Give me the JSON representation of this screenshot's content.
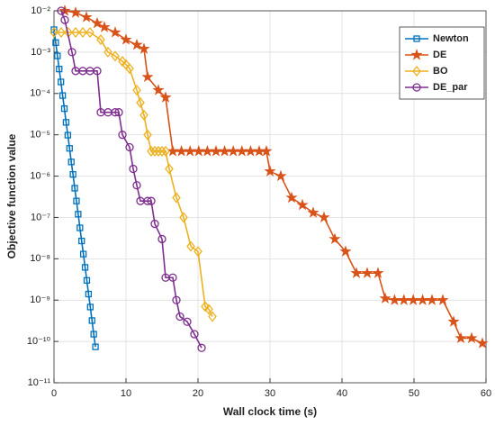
{
  "chart_data": {
    "type": "line",
    "x_label": "Wall clock time (s)",
    "y_label": "Objective function value",
    "xlim": [
      0,
      60
    ],
    "xticks": [
      0,
      10,
      20,
      30,
      40,
      50,
      60
    ],
    "ylim": [
      1e-11,
      0.01
    ],
    "ylog": true,
    "yticks": [
      {
        "value": 1e-11,
        "label": "10⁻¹¹"
      },
      {
        "value": 1e-10,
        "label": "10⁻¹⁰"
      },
      {
        "value": 1e-09,
        "label": "10⁻⁹"
      },
      {
        "value": 1e-08,
        "label": "10⁻⁸"
      },
      {
        "value": 1e-07,
        "label": "10⁻⁷"
      },
      {
        "value": 1e-06,
        "label": "10⁻⁶"
      },
      {
        "value": 1e-05,
        "label": "10⁻⁵"
      },
      {
        "value": 0.0001,
        "label": "10⁻⁴"
      },
      {
        "value": 0.001,
        "label": "10⁻³"
      },
      {
        "value": 0.01,
        "label": "10⁻²"
      }
    ],
    "grid": true,
    "legend": "upper right",
    "series": [
      {
        "name": "Newton",
        "color": "#0072BD",
        "marker": "square",
        "x": [
          0,
          0.24,
          0.48,
          0.72,
          0.96,
          1.2,
          1.44,
          1.68,
          1.92,
          2.16,
          2.4,
          2.64,
          2.88,
          3.12,
          3.36,
          3.6,
          3.84,
          4.08,
          4.32,
          4.56,
          4.8,
          5.04,
          5.28,
          5.52,
          5.76
        ],
        "values": [
          0.0035,
          0.0017,
          0.00081,
          0.00039,
          0.00019,
          8.9e-05,
          4.3e-05,
          2e-05,
          9.8e-06,
          4.7e-06,
          2.2e-06,
          1.1e-06,
          5.1e-07,
          2.5e-07,
          1.2e-07,
          5.6e-08,
          2.7e-08,
          1.3e-08,
          6.2e-09,
          3e-09,
          1.4e-09,
          6.8e-10,
          3.2e-10,
          1.5e-10,
          7.4e-11
        ]
      },
      {
        "name": "DE",
        "color": "#D95319",
        "marker": "star",
        "x": [
          1.5,
          3,
          4.5,
          6,
          7,
          8.5,
          10,
          11.5,
          12.5,
          13,
          14.5,
          15.5,
          16.5,
          17.7,
          18.9,
          20.1,
          21.3,
          22.5,
          23.7,
          24.9,
          26.1,
          27.3,
          28.5,
          29.5,
          30,
          31.5,
          33,
          34.5,
          36,
          37.5,
          39,
          40.5,
          42,
          43.5,
          45,
          46,
          47.3,
          48.6,
          49.9,
          51.2,
          52.5,
          54,
          55.5,
          56.5,
          58,
          59.5
        ],
        "values": [
          0.01,
          0.009,
          0.007,
          0.005,
          0.004,
          0.003,
          0.002,
          0.0015,
          0.0012,
          0.00025,
          0.00012,
          8e-05,
          4e-06,
          4e-06,
          4e-06,
          4e-06,
          4e-06,
          4e-06,
          4e-06,
          4e-06,
          4e-06,
          4e-06,
          4e-06,
          4e-06,
          1.3e-06,
          1e-06,
          3e-07,
          2e-07,
          1.3e-07,
          1e-07,
          3e-08,
          1.5e-08,
          4.5e-09,
          4.5e-09,
          4.5e-09,
          1.1e-09,
          1e-09,
          1e-09,
          1e-09,
          1e-09,
          1e-09,
          1e-09,
          3e-10,
          1.2e-10,
          1.2e-10,
          9e-11
        ]
      },
      {
        "name": "BO",
        "color": "#EDB120",
        "marker": "diamond",
        "x": [
          0,
          1,
          2,
          3,
          4,
          5,
          6.5,
          7.5,
          8.5,
          9.5,
          10,
          10.5,
          11.5,
          12,
          12.5,
          13,
          13.5,
          14,
          14.5,
          15,
          15.5,
          16,
          17,
          18,
          19,
          20,
          21,
          21.5,
          22
        ],
        "values": [
          0.003,
          0.003,
          0.003,
          0.003,
          0.003,
          0.003,
          0.002,
          0.001,
          0.0008,
          0.0006,
          0.0005,
          0.0004,
          0.00012,
          6e-05,
          3e-05,
          1e-05,
          4e-06,
          4e-06,
          4e-06,
          4e-06,
          4e-06,
          1.5e-06,
          3e-07,
          1e-07,
          2e-08,
          1.5e-08,
          7e-10,
          6e-10,
          4e-10
        ]
      },
      {
        "name": "DE_par",
        "color": "#7E2F8E",
        "marker": "circle",
        "x": [
          1,
          1.5,
          2.5,
          3,
          4,
          5,
          6,
          6.5,
          7.5,
          8.5,
          9,
          9.5,
          10.5,
          11,
          11.5,
          12,
          13,
          13.5,
          14,
          15,
          15.5,
          16.5,
          17,
          17.5,
          18.5,
          19.5,
          20.5
        ],
        "values": [
          0.01,
          0.006,
          0.001,
          0.00035,
          0.00035,
          0.00035,
          0.00035,
          3.5e-05,
          3.5e-05,
          3.5e-05,
          3.5e-05,
          1e-05,
          5e-06,
          1.5e-06,
          6e-07,
          2.5e-07,
          2.5e-07,
          2.5e-07,
          7e-08,
          3e-08,
          3.5e-09,
          3.5e-09,
          1e-09,
          4e-10,
          3e-10,
          1.5e-10,
          7e-11
        ]
      }
    ]
  }
}
